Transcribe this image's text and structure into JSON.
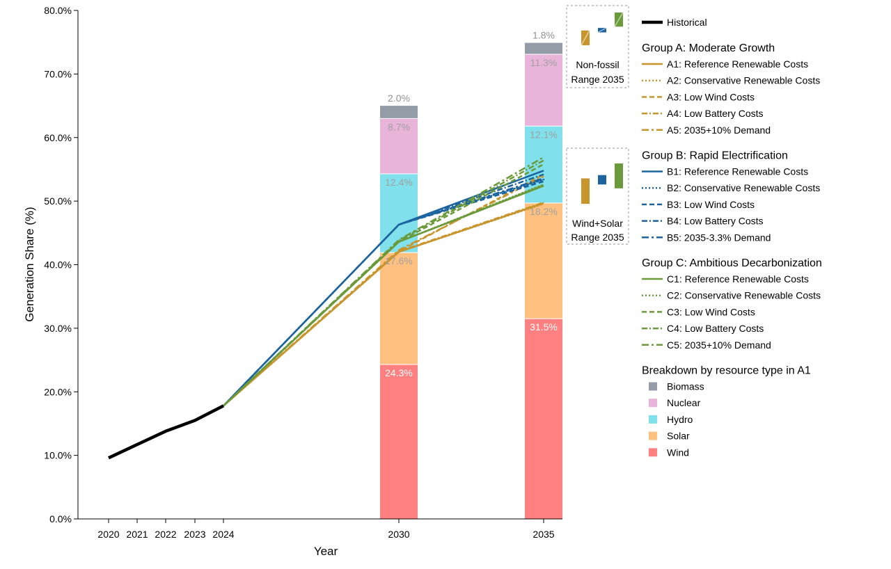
{
  "chart_data": {
    "type": "line",
    "xlabel": "Year",
    "ylabel": "Generation Share (%)",
    "ylim": [
      0,
      80
    ],
    "yticks": [
      "0.0%",
      "10.0%",
      "20.0%",
      "30.0%",
      "40.0%",
      "50.0%",
      "60.0%",
      "70.0%",
      "80.0%"
    ],
    "xticks": [
      "2020",
      "2021",
      "2022",
      "2023",
      "2024",
      "2030",
      "2035"
    ],
    "historical": {
      "name": "Historical",
      "x": [
        2020,
        2021,
        2022,
        2023,
        2024
      ],
      "y": [
        9.6,
        11.7,
        13.8,
        15.5,
        17.8
      ]
    },
    "groups": [
      {
        "title": "Group A: Moderate Growth",
        "color": "#c8952c",
        "series": [
          {
            "name": "A1: Reference Renewable Costs",
            "style": "solid",
            "x": [
              2024,
              2030,
              2035
            ],
            "y": [
              17.8,
              42.0,
              49.7
            ]
          },
          {
            "name": "A2: Conservative Renewable Costs",
            "style": "dotted",
            "x": [
              2024,
              2030,
              2035
            ],
            "y": [
              17.8,
              42.0,
              49.6
            ]
          },
          {
            "name": "A3: Low Wind Costs",
            "style": "dashed",
            "x": [
              2024,
              2030,
              2035
            ],
            "y": [
              17.8,
              42.1,
              54.2
            ]
          },
          {
            "name": "A4: Low Battery Costs",
            "style": "dashdot",
            "x": [
              2024,
              2030,
              2035
            ],
            "y": [
              17.8,
              42.1,
              49.8
            ]
          },
          {
            "name": "A5: 2035+10% Demand",
            "style": "dashdot2",
            "x": [
              2024,
              2030,
              2035
            ],
            "y": [
              17.8,
              42.3,
              53.9
            ]
          }
        ]
      },
      {
        "title": "Group B: Rapid Electrification",
        "color": "#1b64a0",
        "series": [
          {
            "name": "B1: Reference Renewable Costs",
            "style": "solid",
            "x": [
              2024,
              2030,
              2035
            ],
            "y": [
              17.8,
              46.3,
              54.8
            ]
          },
          {
            "name": "B2: Conservative Renewable Costs",
            "style": "dotted",
            "x": [
              2024,
              2030,
              2035
            ],
            "y": [
              17.8,
              46.3,
              53.4
            ]
          },
          {
            "name": "B3: Low Wind Costs",
            "style": "dashed",
            "x": [
              2024,
              2030,
              2035
            ],
            "y": [
              17.8,
              46.3,
              53.1
            ]
          },
          {
            "name": "B4: Low Battery Costs",
            "style": "dashdot",
            "x": [
              2024,
              2030,
              2035
            ],
            "y": [
              17.8,
              46.3,
              54.2
            ]
          },
          {
            "name": "B5: 2035-3.3% Demand",
            "style": "dashdot2",
            "x": [
              2024,
              2030,
              2035
            ],
            "y": [
              17.8,
              46.3,
              53.6
            ]
          }
        ]
      },
      {
        "title": "Group C: Ambitious Decarbonization",
        "color": "#6b9a3a",
        "series": [
          {
            "name": "C1: Reference Renewable Costs",
            "style": "solid",
            "x": [
              2024,
              2030,
              2035
            ],
            "y": [
              17.8,
              43.6,
              52.4
            ]
          },
          {
            "name": "C2: Conservative Renewable Costs",
            "style": "dotted",
            "x": [
              2024,
              2030,
              2035
            ],
            "y": [
              17.8,
              43.6,
              52.6
            ]
          },
          {
            "name": "C3: Low Wind Costs",
            "style": "dashed",
            "x": [
              2024,
              2030,
              2035
            ],
            "y": [
              17.8,
              43.6,
              55.8
            ]
          },
          {
            "name": "C4: Low Battery Costs",
            "style": "dashdot",
            "x": [
              2024,
              2030,
              2035
            ],
            "y": [
              17.8,
              43.8,
              56.4
            ]
          },
          {
            "name": "C5: 2035+10% Demand",
            "style": "dashdot2",
            "x": [
              2024,
              2030,
              2035
            ],
            "y": [
              17.8,
              43.9,
              56.9
            ]
          }
        ]
      }
    ],
    "stacked_bars": {
      "title": "Breakdown by resource type in A1",
      "categories": [
        "2030",
        "2035"
      ],
      "x": [
        2030,
        2035
      ],
      "resources": [
        {
          "name": "Wind",
          "color": "#ff8080",
          "values": [
            24.3,
            31.5
          ],
          "labels": [
            "24.3%",
            "31.5%"
          ],
          "label_color": "#ffffff"
        },
        {
          "name": "Solar",
          "color": "#ffc080",
          "values": [
            17.6,
            18.2
          ],
          "labels": [
            "17.6%",
            "18.2%"
          ],
          "label_color": "#a0a0a0"
        },
        {
          "name": "Hydro",
          "color": "#80e0ec",
          "values": [
            12.4,
            12.1
          ],
          "labels": [
            "12.4%",
            "12.1%"
          ],
          "label_color": "#a0a0a0"
        },
        {
          "name": "Nuclear",
          "color": "#e8b4da",
          "values": [
            8.7,
            11.3
          ],
          "labels": [
            "8.7%",
            "11.3%"
          ],
          "label_color": "#a0a0a0"
        },
        {
          "name": "Biomass",
          "color": "#949ca8",
          "values": [
            2.0,
            1.8
          ],
          "labels": [
            "2.0%",
            "1.8%"
          ],
          "label_color": "#909090"
        }
      ]
    },
    "range_boxes": [
      {
        "label_lines": [
          "Non-fossil",
          "Range 2035"
        ],
        "ranges": [
          {
            "group": "A",
            "min": 74.9,
            "max": 77.2,
            "color": "#c8952c"
          },
          {
            "group": "B",
            "min": 76.9,
            "max": 77.6,
            "color": "#1b64a0"
          },
          {
            "group": "C",
            "min": 77.8,
            "max": 80.0,
            "color": "#6b9a3a"
          }
        ]
      },
      {
        "label_lines": [
          "Wind+Solar",
          "Range 2035"
        ],
        "ranges": [
          {
            "group": "A",
            "min": 49.6,
            "max": 54.2,
            "color": "#c8952c"
          },
          {
            "group": "B",
            "min": 53.1,
            "max": 54.8,
            "color": "#1b64a0"
          },
          {
            "group": "C",
            "min": 52.4,
            "max": 56.9,
            "color": "#6b9a3a"
          }
        ]
      }
    ],
    "legend_position": "right"
  }
}
